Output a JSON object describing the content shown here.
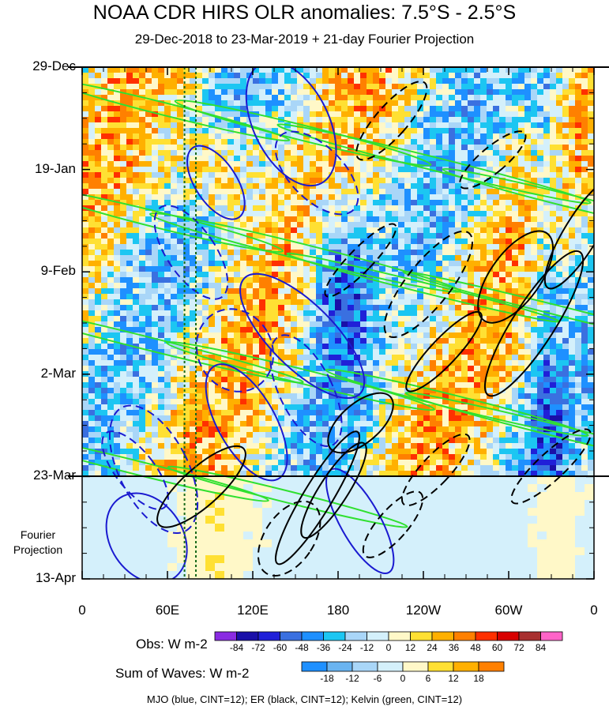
{
  "title": "NOAA CDR HIRS OLR anomalies: 7.5°S - 2.5°S",
  "subtitle": "29-Dec-2018 to 23-Mar-2019 + 21-day Fourier Projection",
  "projection_label": "Fourier Projection",
  "footer": "MJO (blue, CINT=12); ER (black, CINT=12); Kelvin (green, CINT=12)",
  "chart_data": {
    "type": "heatmap",
    "title": "NOAA CDR HIRS OLR anomalies: 7.5°S - 2.5°S",
    "subtitle": "29-Dec-2018 to 23-Mar-2019 + 21-day Fourier Projection",
    "x_axis": {
      "ticks": [
        "0",
        "60E",
        "120E",
        "180",
        "120W",
        "60W",
        "0"
      ],
      "range": [
        0,
        360
      ],
      "unit": "longitude (deg E)"
    },
    "y_axis": {
      "ticks": [
        "29-Dec",
        "19-Jan",
        "9-Feb",
        "2-Mar",
        "23-Mar",
        "13-Apr"
      ],
      "range": [
        "29-Dec-2018",
        "13-Apr-2019"
      ],
      "direction": "time increases downward"
    },
    "observation_end": "23-Mar",
    "projection_region_label": "Fourier Projection",
    "obs_colorbar": {
      "title": "Obs: W m-2",
      "levels": [
        -84,
        -72,
        -60,
        -48,
        -36,
        -24,
        -12,
        0,
        12,
        24,
        36,
        48,
        60,
        72,
        84
      ],
      "colors": [
        "#8a2be2",
        "#1a0fa8",
        "#2020d8",
        "#3a70e0",
        "#1e90ff",
        "#1cc6f2",
        "#a9d6f8",
        "#d4f0fb",
        "#fff8c8",
        "#ffe033",
        "#ffb000",
        "#ff8000",
        "#ff3000",
        "#d80000",
        "#a83030",
        "#ff64c8"
      ]
    },
    "waves_colorbar": {
      "title": "Sum of Waves: W m-2",
      "levels": [
        -18,
        -12,
        -6,
        0,
        6,
        12,
        18
      ],
      "colors": [
        "#1e90ff",
        "#6ab4f0",
        "#a9d6f8",
        "#d4f0fb",
        "#fff8c8",
        "#ffe033",
        "#ffb000",
        "#ff8000"
      ]
    },
    "contours": [
      {
        "name": "MJO",
        "color": "#1a1ad0",
        "cint": 12
      },
      {
        "name": "ER",
        "color": "#000000",
        "cint": 12
      },
      {
        "name": "Kelvin",
        "color": "#30e030",
        "cint": 12
      }
    ],
    "reference_lines_longitude": [
      72,
      80
    ],
    "grid": false
  }
}
